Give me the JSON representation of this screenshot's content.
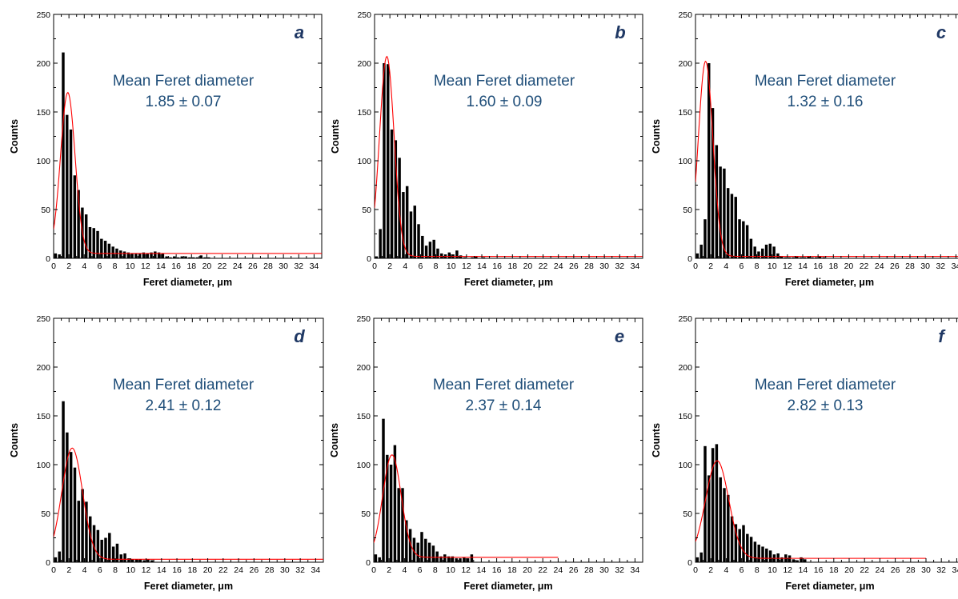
{
  "figure": {
    "panels": [
      {
        "letter": "a",
        "annotation_line1": "Mean Feret diameter",
        "annotation_line2": "1.85 ± 0.07"
      },
      {
        "letter": "b",
        "annotation_line1": "Mean Feret diameter",
        "annotation_line2": "1.60 ± 0.09"
      },
      {
        "letter": "c",
        "annotation_line1": "Mean Feret diameter",
        "annotation_line2": "1.32 ± 0.16"
      },
      {
        "letter": "d",
        "annotation_line1": "Mean Feret diameter",
        "annotation_line2": "2.41 ± 0.12"
      },
      {
        "letter": "e",
        "annotation_line1": "Mean Feret diameter",
        "annotation_line2": "2.37 ± 0.14"
      },
      {
        "letter": "f",
        "annotation_line1": "Mean Feret diameter",
        "annotation_line2": "2.82 ± 0.13"
      }
    ],
    "colors": {
      "bars": "#000000",
      "fit_curve": "#ff0000",
      "annotation": "#1f4e79",
      "panel_letter": "#1f3864"
    }
  },
  "chart_data": [
    {
      "type": "bar",
      "panel": "a",
      "xlabel": "Feret diameter, μm",
      "ylabel": "Counts",
      "xlim": [
        0,
        35
      ],
      "ylim": [
        0,
        250
      ],
      "x_ticks": [
        0,
        2,
        4,
        6,
        8,
        10,
        12,
        14,
        16,
        18,
        20,
        22,
        24,
        26,
        28,
        30,
        32,
        34
      ],
      "y_ticks": [
        0,
        50,
        100,
        150,
        200,
        250
      ],
      "x": [
        0.25,
        0.75,
        1.25,
        1.75,
        2.25,
        2.75,
        3.25,
        3.75,
        4.25,
        4.75,
        5.25,
        5.75,
        6.25,
        6.75,
        7.25,
        7.75,
        8.25,
        8.75,
        9.25,
        9.75,
        10.25,
        10.75,
        11.25,
        11.75,
        12.25,
        12.75,
        13.25,
        13.75,
        14.25,
        14.75,
        15.25,
        15.75,
        16.25,
        16.75,
        17.25,
        17.75,
        18.25,
        18.75,
        19.25,
        19.75,
        20.25
      ],
      "values": [
        5,
        4,
        211,
        147,
        132,
        85,
        70,
        52,
        45,
        32,
        31,
        28,
        20,
        18,
        15,
        12,
        10,
        8,
        7,
        6,
        5,
        5,
        5,
        6,
        5,
        6,
        7,
        6,
        5,
        2,
        1,
        2,
        1,
        2,
        2,
        1,
        1,
        1,
        3,
        1,
        1
      ],
      "fit_curve": {
        "peak_x": 1.85,
        "peak_y": 170,
        "sigma": 0.95,
        "baseline": 5,
        "x_range": [
          0,
          35
        ]
      }
    },
    {
      "type": "bar",
      "panel": "b",
      "xlabel": "Feret diameter, μm",
      "ylabel": "Counts",
      "xlim": [
        0,
        35
      ],
      "ylim": [
        0,
        250
      ],
      "x_ticks": [
        0,
        2,
        4,
        6,
        8,
        10,
        12,
        14,
        16,
        18,
        20,
        22,
        24,
        26,
        28,
        30,
        32,
        34
      ],
      "y_ticks": [
        0,
        50,
        100,
        150,
        200,
        250
      ],
      "x": [
        0.25,
        0.75,
        1.25,
        1.75,
        2.25,
        2.75,
        3.25,
        3.75,
        4.25,
        4.75,
        5.25,
        5.75,
        6.25,
        6.75,
        7.25,
        7.75,
        8.25,
        8.75,
        9.25,
        9.75,
        10.25,
        10.75,
        11.25,
        11.75,
        12.25,
        12.75,
        13.25,
        13.75,
        14.25
      ],
      "values": [
        2,
        30,
        200,
        199,
        132,
        121,
        103,
        68,
        74,
        48,
        54,
        35,
        23,
        13,
        17,
        19,
        10,
        5,
        4,
        6,
        4,
        8,
        3,
        1,
        0,
        1,
        2,
        0,
        1
      ],
      "fit_curve": {
        "peak_x": 1.6,
        "peak_y": 207,
        "sigma": 0.95,
        "baseline": 2,
        "x_range": [
          0,
          35
        ]
      }
    },
    {
      "type": "bar",
      "panel": "c",
      "xlabel": "Feret diameter, μm",
      "ylabel": "Counts",
      "xlim": [
        0,
        35
      ],
      "ylim": [
        0,
        250
      ],
      "x_ticks": [
        0,
        2,
        4,
        6,
        8,
        10,
        12,
        14,
        16,
        18,
        20,
        22,
        24,
        26,
        28,
        30,
        32,
        34
      ],
      "y_ticks": [
        0,
        50,
        100,
        150,
        200,
        250
      ],
      "x": [
        0.25,
        0.75,
        1.25,
        1.75,
        2.25,
        2.75,
        3.25,
        3.75,
        4.25,
        4.75,
        5.25,
        5.75,
        6.25,
        6.75,
        7.25,
        7.75,
        8.25,
        8.75,
        9.25,
        9.75,
        10.25,
        10.75,
        11.25,
        11.75,
        12.25,
        12.75,
        13.25,
        13.75,
        14.25,
        14.75,
        15.25,
        15.75,
        16.25,
        16.75
      ],
      "values": [
        5,
        14,
        40,
        200,
        154,
        116,
        94,
        92,
        72,
        66,
        63,
        40,
        38,
        34,
        20,
        12,
        7,
        10,
        14,
        15,
        12,
        5,
        2,
        1,
        1,
        1,
        2,
        1,
        1,
        2,
        1,
        1,
        2,
        1
      ],
      "fit_curve": {
        "peak_x": 1.32,
        "peak_y": 202,
        "sigma": 0.95,
        "baseline": 2,
        "x_range": [
          0,
          35
        ]
      }
    },
    {
      "type": "bar",
      "panel": "d",
      "xlabel": "Feret diameter, μm",
      "ylabel": "Counts",
      "xlim": [
        0,
        35
      ],
      "ylim": [
        0,
        250
      ],
      "x_ticks": [
        0,
        2,
        4,
        6,
        8,
        10,
        12,
        14,
        16,
        18,
        20,
        22,
        24,
        26,
        28,
        30,
        32,
        34
      ],
      "y_ticks": [
        0,
        50,
        100,
        150,
        200,
        250
      ],
      "x": [
        0.25,
        0.75,
        1.25,
        1.75,
        2.25,
        2.75,
        3.25,
        3.75,
        4.25,
        4.75,
        5.25,
        5.75,
        6.25,
        6.75,
        7.25,
        7.75,
        8.25,
        8.75,
        9.25,
        9.75,
        10.25,
        10.75,
        11.25,
        11.75,
        12.25,
        12.75
      ],
      "values": [
        5,
        11,
        165,
        133,
        113,
        97,
        63,
        75,
        62,
        47,
        38,
        33,
        23,
        25,
        30,
        16,
        19,
        8,
        9,
        4,
        3,
        3,
        3,
        2,
        3,
        2
      ],
      "fit_curve": {
        "peak_x": 2.41,
        "peak_y": 117,
        "sigma": 1.35,
        "baseline": 3,
        "x_range": [
          0,
          35
        ]
      }
    },
    {
      "type": "bar",
      "panel": "e",
      "xlabel": "Feret diameter, μm",
      "ylabel": "Counts",
      "xlim": [
        0,
        35
      ],
      "ylim": [
        0,
        250
      ],
      "x_ticks": [
        0,
        2,
        4,
        6,
        8,
        10,
        12,
        14,
        16,
        18,
        20,
        22,
        24,
        26,
        28,
        30,
        32,
        34
      ],
      "y_ticks": [
        0,
        50,
        100,
        150,
        200,
        250
      ],
      "x": [
        0.25,
        0.75,
        1.25,
        1.75,
        2.25,
        2.75,
        3.25,
        3.75,
        4.25,
        4.75,
        5.25,
        5.75,
        6.25,
        6.75,
        7.25,
        7.75,
        8.25,
        8.75,
        9.25,
        9.75,
        10.25,
        10.75,
        11.25,
        11.75,
        12.25,
        12.75
      ],
      "values": [
        8,
        5,
        147,
        110,
        100,
        120,
        76,
        76,
        43,
        34,
        25,
        20,
        31,
        24,
        20,
        17,
        11,
        6,
        8,
        6,
        6,
        4,
        4,
        5,
        4,
        8
      ],
      "fit_curve": {
        "peak_x": 2.37,
        "peak_y": 110,
        "sigma": 1.2,
        "baseline": 5,
        "x_range": [
          0,
          24
        ]
      }
    },
    {
      "type": "bar",
      "panel": "f",
      "xlabel": "Feret diameter, μm",
      "ylabel": "Counts",
      "xlim": [
        0,
        35
      ],
      "ylim": [
        0,
        250
      ],
      "x_ticks": [
        0,
        2,
        4,
        6,
        8,
        10,
        12,
        14,
        16,
        18,
        20,
        22,
        24,
        26,
        28,
        30,
        32,
        34
      ],
      "y_ticks": [
        0,
        50,
        100,
        150,
        200,
        250
      ],
      "x": [
        0.25,
        0.75,
        1.25,
        1.75,
        2.25,
        2.75,
        3.25,
        3.75,
        4.25,
        4.75,
        5.25,
        5.75,
        6.25,
        6.75,
        7.25,
        7.75,
        8.25,
        8.75,
        9.25,
        9.75,
        10.25,
        10.75,
        11.25,
        11.75,
        12.25,
        12.75,
        13.25,
        13.75,
        14.25
      ],
      "values": [
        5,
        10,
        119,
        89,
        117,
        121,
        87,
        76,
        69,
        47,
        39,
        34,
        38,
        29,
        26,
        21,
        18,
        16,
        14,
        12,
        8,
        9,
        5,
        8,
        7,
        3,
        2,
        5,
        3
      ],
      "fit_curve": {
        "peak_x": 2.82,
        "peak_y": 104,
        "sigma": 1.5,
        "baseline": 4,
        "x_range": [
          0,
          30
        ]
      }
    }
  ]
}
